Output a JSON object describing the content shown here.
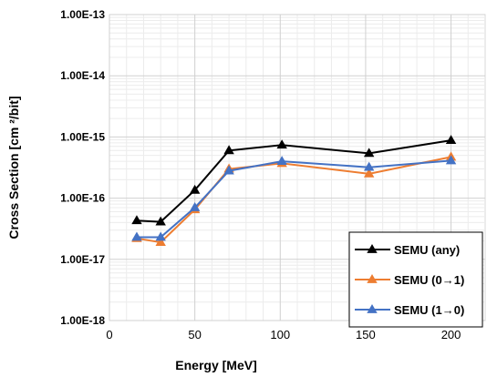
{
  "chart_data": {
    "type": "line",
    "xlabel": "Energy [MeV]",
    "ylabel": "Cross Section [cm ²/bit]",
    "xlim": [
      0,
      220
    ],
    "ylim": [
      1e-18,
      1e-13
    ],
    "yscale": "log",
    "xticks": [
      0,
      50,
      100,
      150,
      200
    ],
    "yticks": [
      "1.00E-18",
      "1.00E-17",
      "1.00E-16",
      "1.00E-15",
      "1.00E-14",
      "1.00E-13"
    ],
    "grid": true,
    "legend_position": "bottom-right",
    "series": [
      {
        "name": "SEMU (any)",
        "color": "#000000",
        "marker": "triangle",
        "x": [
          16,
          30,
          50,
          70,
          101,
          152,
          200
        ],
        "y": [
          4.3e-17,
          4.1e-17,
          1.35e-16,
          6e-16,
          7.4e-16,
          5.4e-16,
          8.8e-16
        ]
      },
      {
        "name": "SEMU (0→1)",
        "color": "#ED7D31",
        "marker": "triangle",
        "x": [
          16,
          30,
          50,
          70,
          101,
          152,
          200
        ],
        "y": [
          2.2e-17,
          1.9e-17,
          6.5e-17,
          3e-16,
          3.7e-16,
          2.5e-16,
          4.7e-16
        ]
      },
      {
        "name": "SEMU (1→0)",
        "color": "#4472C4",
        "marker": "triangle",
        "x": [
          16,
          30,
          50,
          70,
          101,
          152,
          200
        ],
        "y": [
          2.3e-17,
          2.3e-17,
          7e-17,
          2.8e-16,
          4e-16,
          3.2e-16,
          4.1e-16
        ]
      }
    ]
  }
}
